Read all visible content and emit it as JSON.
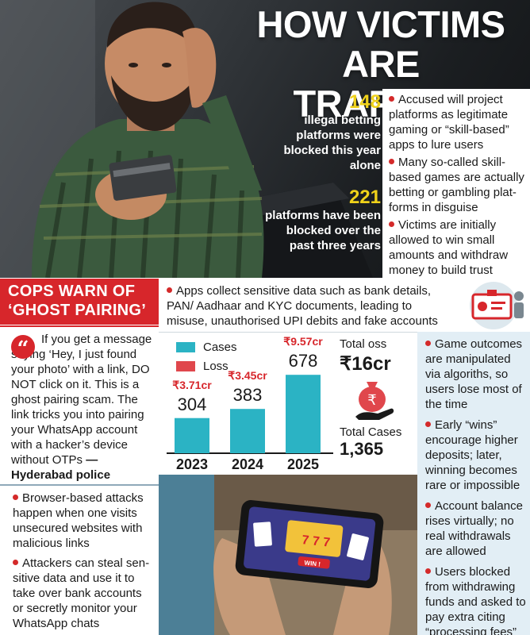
{
  "headline": {
    "line1": "HOW VICTIMS",
    "line2": "ARE TRAPPED"
  },
  "stats": [
    {
      "number": "148",
      "text": "illegal betting platforms were blocked this year alone"
    },
    {
      "number": "221",
      "text": "platforms have been blocked over the past three years"
    }
  ],
  "lure_bullets": [
    "Accused will project platforms as legitimate gaming or “skill-based” apps to lure users",
    "Many so-called skill-based games are actually betting or gambling plat-forms in disguise",
    "Victims are initially allowed to win small amounts and withdraw money to build trust"
  ],
  "cops_header": {
    "line1": "COPS WARN OF",
    "line2": "‘GHOST PAIRING’"
  },
  "apps_collect": "Apps collect sensitive data such as bank details, PAN/ Aadhaar and KYC documents, leading to misuse, unauthorised UPI debits and fake accounts",
  "ghost_pairing": {
    "text": "If you get a message saying ‘Hey, I just found your photo’ with a link, DO NOT click on it. This is a ghost pairing scam. The link tricks you into pairing your WhatsApp account with a hacker’s device without OTPs",
    "source": "—Hyderabad police"
  },
  "attack_bullets": [
    "Browser-based attacks happen when one visits unsecured websites with malicious links",
    "Attackers can steal sen-sitive data and use it to take over bank accounts or secretly monitor your WhatsApp chats"
  ],
  "right_bullets": [
    "Game outcomes are manipulated via algoriths, so users lose most of the time",
    "Early “wins” encourage higher deposits; later, winning becomes rare or impossible",
    "Account balance rises virtually; no real withdrawals are allowed",
    "Users blocked from withdrawing funds and asked to pay extra citing “processing fees”"
  ],
  "chart_data": {
    "type": "bar",
    "categories": [
      "2023",
      "2024",
      "2025"
    ],
    "series": [
      {
        "name": "Cases",
        "values": [
          304,
          383,
          678
        ],
        "color": "#2bb3c4"
      },
      {
        "name": "Loss",
        "values": [
          "₹3.71cr",
          "₹3.45cr",
          "₹9.57cr"
        ],
        "color": "#e0474c"
      }
    ],
    "legend": [
      "Cases",
      "Loss"
    ],
    "total_loss_label": "Total oss",
    "total_loss_value": "₹16cr",
    "total_cases_label": "Total Cases",
    "total_cases_value": "1,365",
    "ylim": [
      0,
      700
    ]
  },
  "phone_screen_label": "WIN !",
  "colors": {
    "red": "#d7262b",
    "teal": "#2bb3c4",
    "yellow": "#f0d21a",
    "panel_blue": "#e2eef5"
  }
}
